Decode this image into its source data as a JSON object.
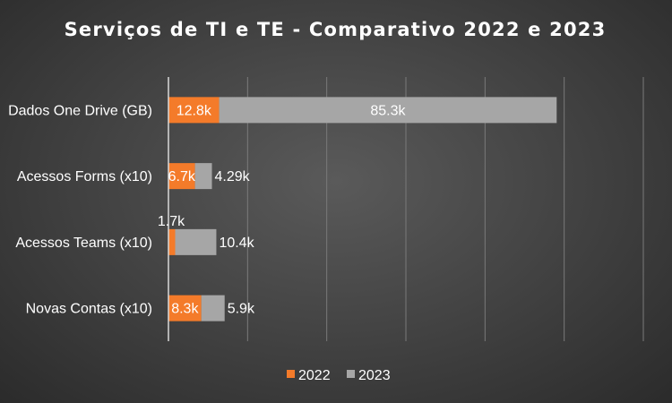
{
  "chart_data": {
    "type": "bar",
    "orientation": "horizontal",
    "stacked": true,
    "title": "Serviços de TI e TE - Comparativo  2022 e 2023",
    "categories": [
      "Dados One Drive (GB)",
      "Acessos Forms (x10)",
      "Acessos Teams (x10)",
      "Novas Contas (x10)"
    ],
    "series": [
      {
        "name": "2022",
        "color": "#f47b2a",
        "values": [
          12.8,
          6.7,
          1.7,
          8.3
        ],
        "labels": [
          "12.8k",
          "6.7k",
          "1.7k",
          "8.3k"
        ]
      },
      {
        "name": "2023",
        "color": "#a6a6a6",
        "values": [
          85.3,
          4.29,
          10.4,
          5.9
        ],
        "labels": [
          "85.3k",
          "4.29k",
          "10.4k",
          "5.9k"
        ]
      }
    ],
    "xlim": [
      0,
      120
    ],
    "grid": true,
    "legend": "bottom"
  }
}
